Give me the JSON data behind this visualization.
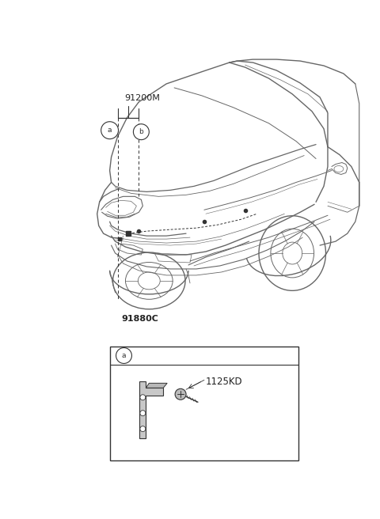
{
  "bg_color": "#ffffff",
  "lc": "#666666",
  "lc_dark": "#333333",
  "label_color": "#222222",
  "fig_width": 4.8,
  "fig_height": 6.56,
  "dpi": 100,
  "label_91200M": "91200M",
  "label_91880C": "91880C",
  "label_1125KD": "1125KD",
  "callout_a": "a",
  "callout_b": "b"
}
